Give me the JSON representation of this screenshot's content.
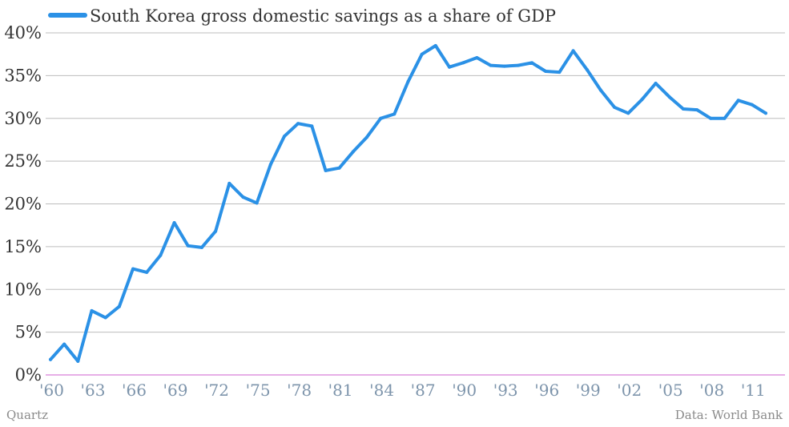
{
  "footer": {
    "left": "Quartz",
    "right": "Data: World Bank"
  },
  "colors": {
    "line": "#2b91e6",
    "grid": "#bdbdbd",
    "baseline": "#cf5fcf",
    "axis_text": "#333333",
    "x_text": "#7d94ab"
  },
  "chart_data": {
    "type": "line",
    "legend_position": "top-left",
    "grid": true,
    "x": [
      1960,
      1961,
      1962,
      1963,
      1964,
      1965,
      1966,
      1967,
      1968,
      1969,
      1970,
      1971,
      1972,
      1973,
      1974,
      1975,
      1976,
      1977,
      1978,
      1979,
      1980,
      1981,
      1982,
      1983,
      1984,
      1985,
      1986,
      1987,
      1988,
      1989,
      1990,
      1991,
      1992,
      1993,
      1994,
      1995,
      1996,
      1997,
      1998,
      1999,
      2000,
      2001,
      2002,
      2003,
      2004,
      2005,
      2006,
      2007,
      2008,
      2009,
      2010,
      2011,
      2012
    ],
    "series": [
      {
        "name": "South Korea gross domestic savings as a share of GDP",
        "values": [
          1.8,
          3.6,
          1.6,
          7.5,
          6.7,
          8.0,
          12.4,
          12.0,
          14.0,
          17.8,
          15.1,
          14.9,
          16.8,
          22.4,
          20.8,
          20.1,
          24.6,
          27.9,
          29.4,
          29.1,
          23.9,
          24.2,
          26.1,
          27.8,
          30.0,
          30.5,
          34.3,
          37.5,
          38.5,
          36.0,
          36.5,
          37.1,
          36.2,
          36.1,
          36.2,
          36.5,
          35.5,
          35.4,
          37.9,
          35.7,
          33.3,
          31.3,
          30.6,
          32.2,
          34.1,
          32.5,
          31.1,
          31.0,
          30.0,
          30.0,
          32.1,
          31.6,
          30.6
        ]
      }
    ],
    "y_ticks": [
      "0%",
      "5%",
      "10%",
      "15%",
      "20%",
      "25%",
      "30%",
      "35%",
      "40%"
    ],
    "x_ticks": [
      {
        "value": 1960,
        "label": "'60"
      },
      {
        "value": 1963,
        "label": "'63"
      },
      {
        "value": 1966,
        "label": "'66"
      },
      {
        "value": 1969,
        "label": "'69"
      },
      {
        "value": 1972,
        "label": "'72"
      },
      {
        "value": 1975,
        "label": "'75"
      },
      {
        "value": 1978,
        "label": "'78"
      },
      {
        "value": 1981,
        "label": "'81"
      },
      {
        "value": 1984,
        "label": "'84"
      },
      {
        "value": 1987,
        "label": "'87"
      },
      {
        "value": 1990,
        "label": "'90"
      },
      {
        "value": 1993,
        "label": "'93"
      },
      {
        "value": 1996,
        "label": "'96"
      },
      {
        "value": 1999,
        "label": "'99"
      },
      {
        "value": 2002,
        "label": "'02"
      },
      {
        "value": 2005,
        "label": "'05"
      },
      {
        "value": 2008,
        "label": "'08"
      },
      {
        "value": 2011,
        "label": "'11"
      }
    ],
    "ylim": [
      0,
      40
    ],
    "xlim": [
      1960,
      2012
    ]
  }
}
